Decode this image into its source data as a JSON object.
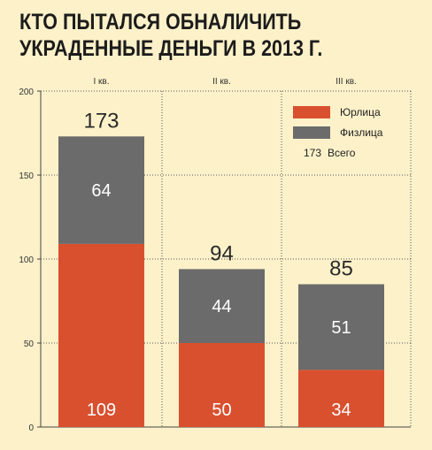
{
  "header": {
    "title_line1": "КТО ПЫТАЛСЯ ОБНАЛИЧИТЬ",
    "title_line2": "УКРАДЕННЫЕ ДЕНЬГИ В 2013 Г."
  },
  "legend": {
    "items": [
      {
        "label": "Юрлица",
        "color": "#d9502f"
      },
      {
        "label": "Физлица",
        "color": "#6b6b6b"
      }
    ],
    "total_sample": "173",
    "total_label": "Всего"
  },
  "chart_data": {
    "type": "bar",
    "stacked": true,
    "title": "КТО ПЫТАЛСЯ ОБНАЛИЧИТЬ УКРАДЕННЫЕ ДЕНЬГИ В 2013 Г.",
    "categories": [
      "I кв.",
      "II кв.",
      "III кв."
    ],
    "series": [
      {
        "name": "Юрлица",
        "values": [
          109,
          50,
          34
        ],
        "color": "#d9502f"
      },
      {
        "name": "Физлица",
        "values": [
          64,
          44,
          51
        ],
        "color": "#6b6b6b"
      }
    ],
    "totals": [
      173,
      94,
      85
    ],
    "ylim": [
      0,
      200
    ],
    "yticks": [
      0,
      50,
      100,
      150,
      200
    ],
    "grid": true,
    "legend_position": "top-right"
  }
}
